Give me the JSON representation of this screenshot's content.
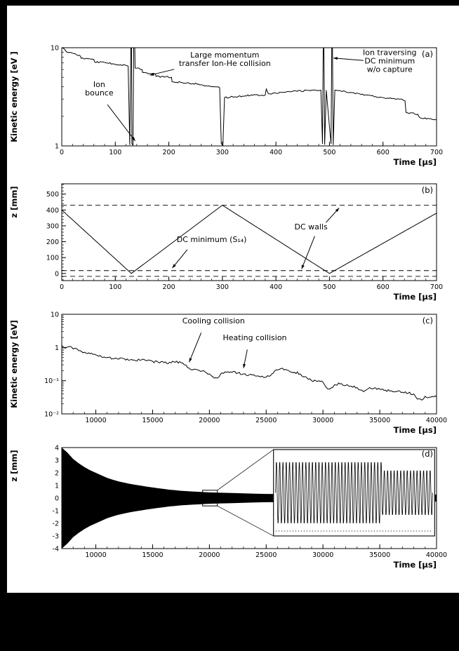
{
  "page": {
    "background": "#000000",
    "figure_background": "#ffffff",
    "ink": "#000000"
  },
  "chart_data": [
    {
      "id": "a",
      "type": "line",
      "panel_label": "(a)",
      "xlabel": "Time [µs]",
      "ylabel": "Kinetic energy [eV ]",
      "xlim": [
        0,
        700
      ],
      "xticks": [
        {
          "v": 0,
          "l": "0"
        },
        {
          "v": 100,
          "l": "100"
        },
        {
          "v": 200,
          "l": "200"
        },
        {
          "v": 300,
          "l": "300"
        },
        {
          "v": 400,
          "l": "400"
        },
        {
          "v": 500,
          "l": "500"
        },
        {
          "v": 600,
          "l": "600"
        },
        {
          "v": 700,
          "l": "700"
        }
      ],
      "x_minor": 20,
      "yscale": "log",
      "ylim": [
        1,
        10
      ],
      "yticks": [
        {
          "v": 10,
          "l": "10"
        },
        {
          "v": 1,
          "l": "1"
        }
      ],
      "y_minor": "log",
      "ytitle_at": "center",
      "points": [
        [
          0,
          10
        ],
        [
          8,
          9.2
        ],
        [
          20,
          8.8
        ],
        [
          35,
          8.2
        ],
        [
          36,
          7.8
        ],
        [
          60,
          7.6
        ],
        [
          61,
          7.2
        ],
        [
          85,
          7.0
        ],
        [
          110,
          6.7
        ],
        [
          124,
          6.5
        ],
        [
          127,
          1.02
        ],
        [
          129,
          9.8
        ],
        [
          130,
          30
        ],
        [
          131,
          1.05
        ],
        [
          133,
          1.02
        ],
        [
          135,
          30
        ],
        [
          137,
          6.2
        ],
        [
          150,
          6.0
        ],
        [
          151,
          5.6
        ],
        [
          175,
          5.4
        ],
        [
          176,
          5.1
        ],
        [
          205,
          5.0
        ],
        [
          206,
          4.5
        ],
        [
          235,
          4.4
        ],
        [
          260,
          4.2
        ],
        [
          285,
          4.0
        ],
        [
          295,
          3.9
        ],
        [
          298,
          1.05
        ],
        [
          301,
          1.02
        ],
        [
          304,
          3.1
        ],
        [
          330,
          3.2
        ],
        [
          355,
          3.3
        ],
        [
          380,
          3.3
        ],
        [
          382,
          3.8
        ],
        [
          386,
          3.4
        ],
        [
          410,
          3.5
        ],
        [
          440,
          3.6
        ],
        [
          470,
          3.7
        ],
        [
          484,
          3.7
        ],
        [
          487,
          1.05
        ],
        [
          489,
          30
        ],
        [
          491,
          1.03
        ],
        [
          494,
          3.7
        ],
        [
          503,
          1.05
        ],
        [
          505,
          30
        ],
        [
          507,
          1.02
        ],
        [
          510,
          3.7
        ],
        [
          540,
          3.5
        ],
        [
          570,
          3.3
        ],
        [
          600,
          3.1
        ],
        [
          630,
          3.0
        ],
        [
          641,
          2.9
        ],
        [
          643,
          2.2
        ],
        [
          665,
          2.1
        ],
        [
          668,
          1.95
        ],
        [
          700,
          1.85
        ]
      ],
      "annotations": [
        {
          "lines": [
            "Large momentum",
            "transfer Ion-He collision"
          ],
          "fx": 0.435,
          "fy": 0.1,
          "arrows": [
            {
              "x1": 0.3,
              "y1": 0.22,
              "x2": 0.235,
              "y2": 0.28
            }
          ]
        },
        {
          "lines": [
            "Ion traversing",
            "DC minimum",
            "w/o capture"
          ],
          "fx": 0.875,
          "fy": 0.075,
          "arrows": [
            {
              "x1": 0.805,
              "y1": 0.13,
              "x2": 0.725,
              "y2": 0.105
            }
          ]
        },
        {
          "lines": [
            "Ion",
            "bounce"
          ],
          "fx": 0.1,
          "fy": 0.4,
          "arrows": [
            {
              "x1": 0.122,
              "y1": 0.58,
              "x2": 0.196,
              "y2": 0.95
            }
          ]
        }
      ]
    },
    {
      "id": "b",
      "type": "line",
      "panel_label": "(b)",
      "xlabel": "Time [µs]",
      "ylabel": "z [mm]",
      "xlim": [
        0,
        700
      ],
      "xticks": [
        {
          "v": 0,
          "l": "0"
        },
        {
          "v": 100,
          "l": "100"
        },
        {
          "v": 200,
          "l": "200"
        },
        {
          "v": 300,
          "l": "300"
        },
        {
          "v": 400,
          "l": "400"
        },
        {
          "v": 500,
          "l": "500"
        },
        {
          "v": 600,
          "l": "600"
        },
        {
          "v": 700,
          "l": "700"
        }
      ],
      "x_minor": 20,
      "yscale": "linear",
      "ylim": [
        -45,
        565
      ],
      "yticks": [
        {
          "v": 0,
          "l": "0"
        },
        {
          "v": 100,
          "l": "100"
        },
        {
          "v": 200,
          "l": "200"
        },
        {
          "v": 300,
          "l": "300"
        },
        {
          "v": 400,
          "l": "400"
        },
        {
          "v": 500,
          "l": "500"
        }
      ],
      "y_minor": 20,
      "ytitle_at": "top",
      "dashed_y": [
        430,
        18,
        -18
      ],
      "points": [
        [
          0,
          400
        ],
        [
          130,
          0
        ],
        [
          300,
          430
        ],
        [
          500,
          0
        ],
        [
          700,
          380
        ]
      ],
      "annotations": [
        {
          "lines": [
            "DC minimum (S₁₄)"
          ],
          "fx": 0.4,
          "fy": 0.6,
          "arrows": [
            {
              "x1": 0.335,
              "y1": 0.68,
              "x2": 0.295,
              "y2": 0.87
            }
          ]
        },
        {
          "lines": [
            "DC walls"
          ],
          "fx": 0.665,
          "fy": 0.47,
          "arrows": [
            {
              "x1": 0.705,
              "y1": 0.4,
              "x2": 0.74,
              "y2": 0.25
            },
            {
              "x1": 0.675,
              "y1": 0.54,
              "x2": 0.64,
              "y2": 0.88
            }
          ]
        }
      ]
    },
    {
      "id": "c",
      "type": "line",
      "panel_label": "(c)",
      "xlabel": "Time [µs]",
      "ylabel": "Kinetic energy [eV]",
      "xlim": [
        7000,
        40000
      ],
      "xticks": [
        {
          "v": 10000,
          "l": "10000"
        },
        {
          "v": 15000,
          "l": "15000"
        },
        {
          "v": 20000,
          "l": "20000"
        },
        {
          "v": 25000,
          "l": "25000"
        },
        {
          "v": 30000,
          "l": "30000"
        },
        {
          "v": 35000,
          "l": "35000"
        },
        {
          "v": 40000,
          "l": "40000"
        }
      ],
      "x_minor": 1000,
      "yscale": "log",
      "ylim": [
        0.01,
        10
      ],
      "yticks": [
        {
          "v": 10,
          "l": "10"
        },
        {
          "v": 1,
          "l": "1"
        },
        {
          "v": 0.1,
          "l": "10⁻¹"
        },
        {
          "v": 0.01,
          "l": "10⁻²"
        }
      ],
      "y_minor": "log",
      "ytitle_at": "center",
      "points": [
        [
          7000,
          1.15
        ],
        [
          7300,
          0.95
        ],
        [
          7600,
          1.05
        ],
        [
          8000,
          0.9
        ],
        [
          8500,
          0.8
        ],
        [
          9000,
          0.72
        ],
        [
          9500,
          0.65
        ],
        [
          10000,
          0.6
        ],
        [
          10500,
          0.52
        ],
        [
          11000,
          0.5
        ],
        [
          11500,
          0.46
        ],
        [
          12000,
          0.44
        ],
        [
          12500,
          0.46
        ],
        [
          13000,
          0.42
        ],
        [
          13500,
          0.4
        ],
        [
          14000,
          0.42
        ],
        [
          14500,
          0.4
        ],
        [
          15000,
          0.38
        ],
        [
          15500,
          0.36
        ],
        [
          16000,
          0.35
        ],
        [
          16500,
          0.36
        ],
        [
          17000,
          0.36
        ],
        [
          17500,
          0.35
        ],
        [
          17800,
          0.3
        ],
        [
          18200,
          0.24
        ],
        [
          18600,
          0.22
        ],
        [
          19000,
          0.21
        ],
        [
          19500,
          0.2
        ],
        [
          20000,
          0.16
        ],
        [
          20300,
          0.13
        ],
        [
          20700,
          0.12
        ],
        [
          21000,
          0.16
        ],
        [
          21500,
          0.18
        ],
        [
          22000,
          0.18
        ],
        [
          22500,
          0.17
        ],
        [
          23000,
          0.16
        ],
        [
          23500,
          0.15
        ],
        [
          24000,
          0.14
        ],
        [
          24500,
          0.13
        ],
        [
          25000,
          0.13
        ],
        [
          25500,
          0.16
        ],
        [
          26000,
          0.21
        ],
        [
          26300,
          0.23
        ],
        [
          26700,
          0.22
        ],
        [
          27000,
          0.2
        ],
        [
          27500,
          0.18
        ],
        [
          28000,
          0.16
        ],
        [
          28300,
          0.13
        ],
        [
          28700,
          0.11
        ],
        [
          29000,
          0.1
        ],
        [
          29500,
          0.095
        ],
        [
          30000,
          0.09
        ],
        [
          30300,
          0.062
        ],
        [
          30700,
          0.06
        ],
        [
          31000,
          0.075
        ],
        [
          31500,
          0.08
        ],
        [
          32000,
          0.072
        ],
        [
          32500,
          0.068
        ],
        [
          33000,
          0.062
        ],
        [
          33300,
          0.052
        ],
        [
          33700,
          0.05
        ],
        [
          34000,
          0.058
        ],
        [
          34500,
          0.06
        ],
        [
          35000,
          0.056
        ],
        [
          35500,
          0.052
        ],
        [
          36000,
          0.05
        ],
        [
          36500,
          0.047
        ],
        [
          37000,
          0.045
        ],
        [
          37500,
          0.042
        ],
        [
          38000,
          0.04
        ],
        [
          38300,
          0.028
        ],
        [
          38700,
          0.026
        ],
        [
          39000,
          0.034
        ],
        [
          39500,
          0.032
        ],
        [
          40000,
          0.033
        ]
      ],
      "annotations": [
        {
          "lines": [
            "Cooling collision"
          ],
          "fx": 0.405,
          "fy": 0.09,
          "arrows": [
            {
              "x1": 0.372,
              "y1": 0.185,
              "x2": 0.34,
              "y2": 0.48
            }
          ]
        },
        {
          "lines": [
            "Heating collision"
          ],
          "fx": 0.515,
          "fy": 0.26,
          "arrows": [
            {
              "x1": 0.495,
              "y1": 0.355,
              "x2": 0.485,
              "y2": 0.54
            }
          ]
        }
      ]
    },
    {
      "id": "d",
      "type": "area",
      "panel_label": "(d)",
      "xlabel": "Time [µs]",
      "ylabel": "z [mm]",
      "xlim": [
        7000,
        40000
      ],
      "xticks": [
        {
          "v": 10000,
          "l": "10000"
        },
        {
          "v": 15000,
          "l": "15000"
        },
        {
          "v": 20000,
          "l": "20000"
        },
        {
          "v": 25000,
          "l": "25000"
        },
        {
          "v": 30000,
          "l": "30000"
        },
        {
          "v": 35000,
          "l": "35000"
        },
        {
          "v": 40000,
          "l": "40000"
        }
      ],
      "x_minor": 1000,
      "yscale": "linear",
      "ylim": [
        -4,
        4
      ],
      "yticks": [
        {
          "v": 4,
          "l": "4"
        },
        {
          "v": 3,
          "l": "3"
        },
        {
          "v": 2,
          "l": "2"
        },
        {
          "v": 1,
          "l": "1"
        },
        {
          "v": 0,
          "l": "0"
        },
        {
          "v": -1,
          "l": "-1"
        },
        {
          "v": -2,
          "l": "-2"
        },
        {
          "v": -3,
          "l": "-3"
        },
        {
          "v": -4,
          "l": "-4"
        }
      ],
      "y_minor": 0.2,
      "ytitle_at": "top",
      "envelope": [
        [
          7000,
          4.0
        ],
        [
          7500,
          3.6
        ],
        [
          8000,
          3.1
        ],
        [
          8500,
          2.75
        ],
        [
          9000,
          2.45
        ],
        [
          9500,
          2.2
        ],
        [
          10000,
          2.0
        ],
        [
          10500,
          1.8
        ],
        [
          11000,
          1.6
        ],
        [
          11500,
          1.45
        ],
        [
          12000,
          1.32
        ],
        [
          12500,
          1.22
        ],
        [
          13000,
          1.12
        ],
        [
          13500,
          1.05
        ],
        [
          14000,
          0.98
        ],
        [
          14500,
          0.9
        ],
        [
          15000,
          0.84
        ],
        [
          15500,
          0.78
        ],
        [
          16000,
          0.72
        ],
        [
          16500,
          0.66
        ],
        [
          17000,
          0.62
        ],
        [
          17500,
          0.58
        ],
        [
          18000,
          0.55
        ],
        [
          18500,
          0.52
        ],
        [
          19000,
          0.5
        ],
        [
          19500,
          0.47
        ],
        [
          20000,
          0.45
        ],
        [
          21000,
          0.42
        ],
        [
          22000,
          0.4
        ],
        [
          23000,
          0.37
        ],
        [
          24000,
          0.35
        ],
        [
          25000,
          0.33
        ],
        [
          26000,
          0.32
        ],
        [
          28000,
          0.3
        ],
        [
          30000,
          0.29
        ],
        [
          34000,
          0.28
        ],
        [
          40000,
          0.28
        ]
      ],
      "zoom": {
        "t1": 19400,
        "t2": 20700,
        "z": 0.62
      },
      "inset": {
        "fx1": 0.565,
        "fy1": 0.02,
        "fx2": 0.995,
        "fy2": 0.875,
        "cycles": 48,
        "amp1": 0.8,
        "amp2": 0.58,
        "amp_split": 0.68
      }
    }
  ]
}
